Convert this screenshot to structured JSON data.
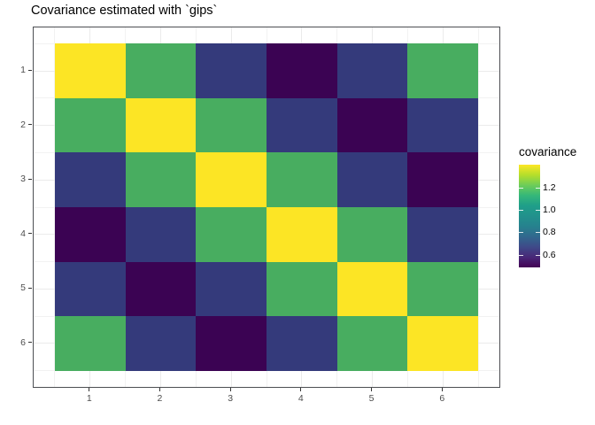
{
  "title": "Covariance estimated with `gips`",
  "chart_data": {
    "type": "heatmap",
    "title": "Covariance estimated with `gips`",
    "xlabel": "",
    "ylabel": "",
    "x_tick_labels": [
      "1",
      "2",
      "3",
      "4",
      "5",
      "6"
    ],
    "y_tick_labels": [
      "1",
      "2",
      "3",
      "4",
      "5",
      "6"
    ],
    "x_tick_values": [
      1,
      2,
      3,
      4,
      5,
      6
    ],
    "y_tick_values": [
      1,
      2,
      3,
      4,
      5,
      6
    ],
    "axis_domain": [
      0.2,
      6.8
    ],
    "tile_extent": [
      0.5,
      6.5
    ],
    "grid": "on",
    "minor_grid_values": [
      0.5,
      1.5,
      2.5,
      3.5,
      4.5,
      5.5,
      6.5
    ],
    "matrix": [
      [
        1.41,
        1.13,
        0.65,
        0.49,
        0.65,
        1.13
      ],
      [
        1.13,
        1.41,
        1.13,
        0.65,
        0.49,
        0.65
      ],
      [
        0.65,
        1.13,
        1.41,
        1.13,
        0.65,
        0.49
      ],
      [
        0.49,
        0.65,
        1.13,
        1.41,
        1.13,
        0.65
      ],
      [
        0.65,
        0.49,
        0.65,
        1.13,
        1.41,
        1.13
      ],
      [
        1.13,
        0.65,
        0.49,
        0.65,
        1.13,
        1.41
      ]
    ],
    "value_colors": [
      {
        "value": 1.41,
        "color": "#FCE525"
      },
      {
        "value": 1.13,
        "color": "#48AD60"
      },
      {
        "value": 0.65,
        "color": "#343A7B"
      },
      {
        "value": 0.49,
        "color": "#3B0353"
      }
    ],
    "legend": {
      "title": "covariance",
      "position": "right",
      "colormap": "viridis",
      "range": [
        0.49,
        1.41
      ],
      "tick_values": [
        1.2,
        1.0,
        0.8,
        0.6
      ],
      "tick_labels": [
        "1.2",
        "1.0",
        "0.8",
        "0.6"
      ],
      "gradient_bottom_to_top": [
        "#440154",
        "#482878",
        "#3E4A89",
        "#31688E",
        "#26828E",
        "#21918C",
        "#1F9E89",
        "#35B779",
        "#6DCD59",
        "#B5DE2B",
        "#FDE725"
      ]
    },
    "theme": {
      "panel_border_color": "#4d4f53",
      "major_grid_color": "#ebebeb",
      "minor_grid_color": "#f2f2f2",
      "axis_text_color": "#4d4d4d",
      "tick_mark_color": "#333333",
      "background_color": "#ffffff"
    }
  }
}
